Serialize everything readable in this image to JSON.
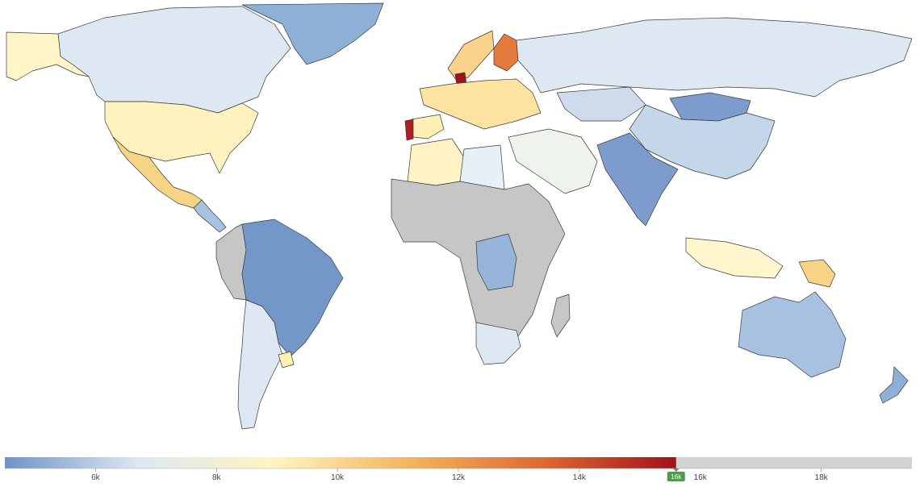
{
  "legend": {
    "min": 4500,
    "max": 19500,
    "current_value": 15600,
    "current_label": "16k",
    "ticks": [
      {
        "value": 6000,
        "label": "6k"
      },
      {
        "value": 8000,
        "label": "8k"
      },
      {
        "value": 10000,
        "label": "10k"
      },
      {
        "value": 12000,
        "label": "12k"
      },
      {
        "value": 14000,
        "label": "14k"
      },
      {
        "value": 16000,
        "label": "16k"
      },
      {
        "value": 18000,
        "label": "18k"
      }
    ],
    "gradient_stops": [
      "#6f93c7",
      "#dde8f2",
      "#fff4c0",
      "#f3b660",
      "#dc6a32",
      "#a3121b"
    ],
    "track_color": "#d2d2d2",
    "marker_color": "#4e9a4e"
  },
  "colors": {
    "no_data": "#c6c6c6",
    "border": "#3a3a3a",
    "ocean": "#ffffff"
  },
  "regions": [
    {
      "name": "Canada",
      "color": "#dde8f3"
    },
    {
      "name": "Alaska",
      "color": "#fff5c8"
    },
    {
      "name": "Greenland",
      "color": "#8eafd6"
    },
    {
      "name": "United States",
      "color": "#fff2bf"
    },
    {
      "name": "Mexico",
      "color": "#f7d385"
    },
    {
      "name": "Central America",
      "color": "#a7c1e0"
    },
    {
      "name": "Brazil",
      "color": "#7497ca"
    },
    {
      "name": "Argentina",
      "color": "#dde8f3"
    },
    {
      "name": "Peru",
      "color": "#c6c6c6"
    },
    {
      "name": "Uruguay",
      "color": "#fff0b5"
    },
    {
      "name": "Russia",
      "color": "#dde8f3"
    },
    {
      "name": "China",
      "color": "#c4d6ea"
    },
    {
      "name": "Mongolia",
      "color": "#7d9ccd"
    },
    {
      "name": "India",
      "color": "#7d9ccd"
    },
    {
      "name": "Kazakhstan",
      "color": "#cddbec"
    },
    {
      "name": "Africa (no data)",
      "color": "#c6c6c6"
    },
    {
      "name": "DR Congo",
      "color": "#96b3da"
    },
    {
      "name": "Southern Africa",
      "color": "#dde8f3"
    },
    {
      "name": "Australia",
      "color": "#a7c1e0"
    },
    {
      "name": "New Zealand",
      "color": "#8eafd6"
    },
    {
      "name": "Finland",
      "color": "#e47b3c"
    },
    {
      "name": "Scandinavia",
      "color": "#fbd28a"
    },
    {
      "name": "Portugal",
      "color": "#b01e22"
    },
    {
      "name": "Denmark",
      "color": "#a3121b"
    },
    {
      "name": "Spain",
      "color": "#fff0b5"
    },
    {
      "name": "Europe",
      "color": "#fce3a0"
    },
    {
      "name": "Indonesia",
      "color": "#fff6cd"
    },
    {
      "name": "Middle East",
      "color": "#eef4ec"
    },
    {
      "name": "Libya",
      "color": "#fff2c5"
    },
    {
      "name": "Algeria",
      "color": "#e8f0f7"
    },
    {
      "name": "Papua New Guinea",
      "color": "#f7d385"
    }
  ]
}
